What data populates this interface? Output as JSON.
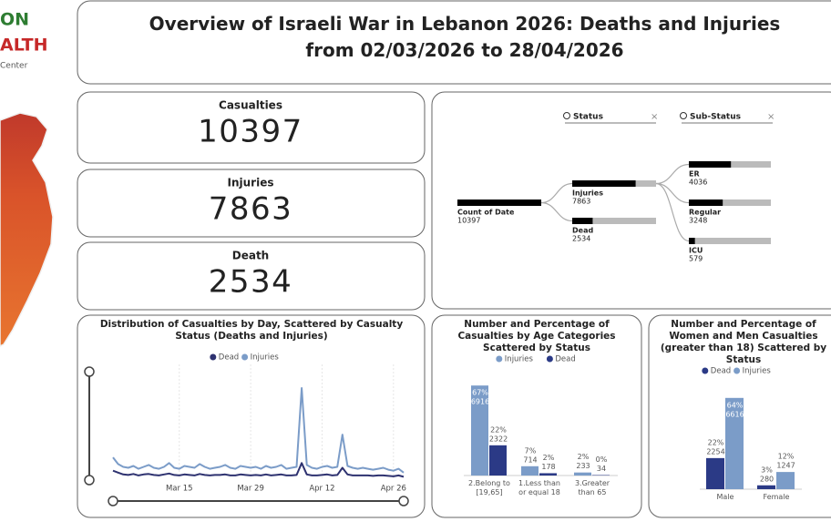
{
  "logo": {
    "line1": "ON",
    "line2": "ALTH",
    "line3": "Center"
  },
  "header": {
    "title": "Overview of Israeli War in Lebanon 2026: Deaths and Injuries from 02/03/2026 to 28/04/2026"
  },
  "cards": [
    {
      "label": "Casualties",
      "value": 10397
    },
    {
      "label": "Injuries",
      "value": 7863
    },
    {
      "label": "Death",
      "value": 2534
    }
  ],
  "decomposition_tree": {
    "levels": [
      "Status",
      "Sub-Status"
    ],
    "root": {
      "label": "Count of Date",
      "value": 10397
    },
    "status": [
      {
        "label": "Injuries",
        "value": 7863
      },
      {
        "label": "Dead",
        "value": 2534
      }
    ],
    "sub_status": [
      {
        "label": "ER",
        "value": 4036
      },
      {
        "label": "Regular",
        "value": 3248
      },
      {
        "label": "ICU",
        "value": 579
      }
    ]
  },
  "chart_data": [
    {
      "type": "line",
      "title": "Distribution of Casualties by Day, Scattered by Casualty Status (Deaths and Injuries)",
      "x": [
        "Mar 2",
        "Mar 3",
        "Mar 4",
        "Mar 5",
        "Mar 6",
        "Mar 7",
        "Mar 8",
        "Mar 9",
        "Mar 10",
        "Mar 11",
        "Mar 12",
        "Mar 13",
        "Mar 14",
        "Mar 15",
        "Mar 16",
        "Mar 17",
        "Mar 18",
        "Mar 19",
        "Mar 20",
        "Mar 21",
        "Mar 22",
        "Mar 23",
        "Mar 24",
        "Mar 25",
        "Mar 26",
        "Mar 27",
        "Mar 28",
        "Mar 29",
        "Mar 30",
        "Mar 31",
        "Apr 1",
        "Apr 2",
        "Apr 3",
        "Apr 4",
        "Apr 5",
        "Apr 6",
        "Apr 7",
        "Apr 8",
        "Apr 9",
        "Apr 10",
        "Apr 11",
        "Apr 12",
        "Apr 13",
        "Apr 14",
        "Apr 15",
        "Apr 16",
        "Apr 17",
        "Apr 18",
        "Apr 19",
        "Apr 20",
        "Apr 21",
        "Apr 22",
        "Apr 23",
        "Apr 24",
        "Apr 25",
        "Apr 26",
        "Apr 27",
        "Apr 28"
      ],
      "xticks": [
        "Mar 15",
        "Mar 29",
        "Apr 12",
        "Apr 26"
      ],
      "ylim": [
        0,
        1200
      ],
      "series": [
        {
          "name": "Dead",
          "color": "#2e3270",
          "values": [
            80,
            60,
            40,
            35,
            45,
            30,
            40,
            45,
            35,
            30,
            40,
            50,
            35,
            30,
            40,
            35,
            30,
            45,
            35,
            30,
            35,
            35,
            40,
            30,
            30,
            40,
            35,
            30,
            35,
            30,
            40,
            30,
            35,
            40,
            30,
            30,
            35,
            160,
            40,
            30,
            30,
            35,
            40,
            30,
            35,
            110,
            40,
            30,
            30,
            30,
            30,
            25,
            30,
            30,
            25,
            20,
            30,
            15
          ]
        },
        {
          "name": "Injuries",
          "color": "#7b9cc8",
          "values": [
            220,
            150,
            120,
            110,
            130,
            100,
            120,
            140,
            110,
            100,
            120,
            160,
            110,
            100,
            130,
            120,
            110,
            150,
            120,
            100,
            110,
            120,
            140,
            110,
            100,
            130,
            120,
            110,
            120,
            100,
            130,
            110,
            120,
            140,
            100,
            110,
            120,
            950,
            140,
            110,
            100,
            120,
            130,
            110,
            120,
            460,
            130,
            110,
            100,
            110,
            100,
            90,
            100,
            110,
            90,
            80,
            100,
            60
          ]
        }
      ],
      "grid": true
    },
    {
      "type": "bar",
      "title": "Number and Percentage of Casualties by Age Categories Scattered by Status",
      "categories": [
        "2.Belong to [19,65]",
        "1.Less than or equal 18",
        "3.Greater than 65"
      ],
      "ylim": [
        0,
        7000
      ],
      "series": [
        {
          "name": "Injuries",
          "color": "#7b9cc8",
          "values": [
            6916,
            714,
            233
          ],
          "percent_labels": [
            "67%",
            "7%",
            "2%"
          ]
        },
        {
          "name": "Dead",
          "color": "#2b3a86",
          "values": [
            2322,
            178,
            34
          ],
          "percent_labels": [
            "22%",
            "2%",
            "0%"
          ]
        }
      ]
    },
    {
      "type": "bar",
      "title": "Number and Percentage of Women and Men Casualties (greater than 18) Scattered by Status",
      "categories": [
        "Male",
        "Female"
      ],
      "ylim": [
        0,
        7000
      ],
      "series": [
        {
          "name": "Dead",
          "color": "#2b3a86",
          "values": [
            2254,
            280
          ],
          "percent_labels": [
            "22%",
            "3%"
          ]
        },
        {
          "name": "Injuries",
          "color": "#7b9cc8",
          "values": [
            6616,
            1247
          ],
          "percent_labels": [
            "64%",
            "12%"
          ]
        }
      ]
    }
  ]
}
